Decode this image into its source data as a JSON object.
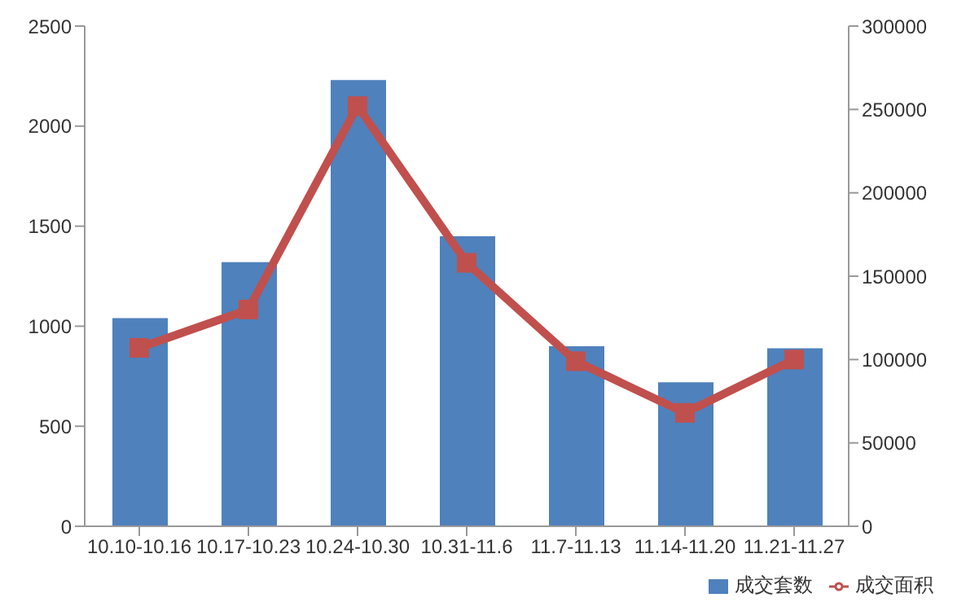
{
  "chart_data": {
    "type": "bar",
    "categories": [
      "10.10-10.16",
      "10.17-10.23",
      "10.24-10.30",
      "10.31-11.6",
      "11.7-11.13",
      "11.14-11.20",
      "11.21-11.27"
    ],
    "series": [
      {
        "name": "成交套数",
        "color": "#4f81bd",
        "values": [
          1040,
          1320,
          2230,
          1450,
          900,
          720,
          890
        ]
      },
      {
        "name": "成交面积",
        "type": "line",
        "axis": "y2",
        "color": "#c0504d",
        "marker": "square",
        "values": [
          107000,
          130000,
          252000,
          158000,
          99000,
          68000,
          100000
        ]
      }
    ],
    "ylim": [
      0,
      2500
    ],
    "yticks": [
      0,
      500,
      1000,
      1500,
      2000,
      2500
    ],
    "y2lim": [
      0,
      300000
    ],
    "y2ticks": [
      0,
      50000,
      100000,
      150000,
      200000,
      250000,
      300000
    ],
    "grid": false,
    "legend": "bottom right"
  }
}
